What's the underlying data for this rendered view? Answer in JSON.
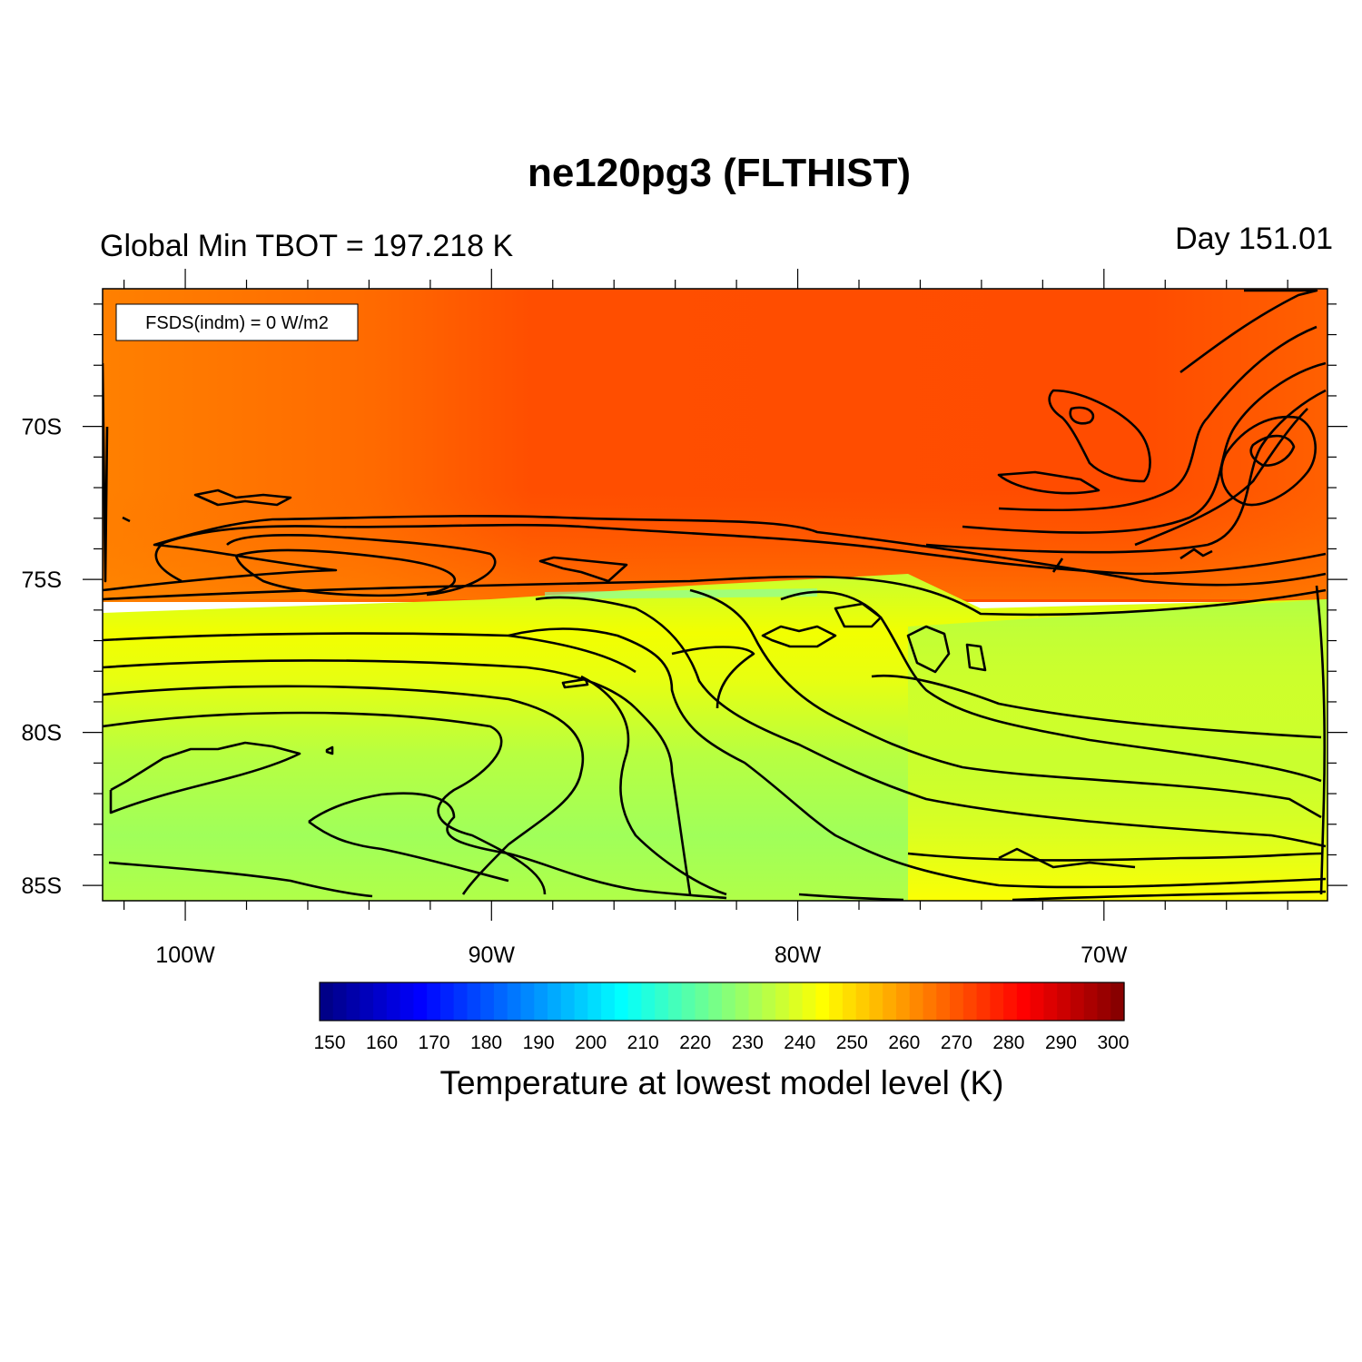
{
  "chart_data": {
    "type": "heatmap",
    "title": "ne120pg3 (FLTHIST)",
    "subtitle_left": "Global Min TBOT = 197.218 K",
    "subtitle_right": "Day 151.01",
    "annotation": "FSDS(indm) = 0 W/m2",
    "colorbar_title": "Temperature at lowest model level (K)",
    "x_axis": {
      "unit": "degrees longitude",
      "range": [
        -102.7,
        -62.7
      ],
      "ticks": [
        -100,
        -90,
        -80,
        -70
      ],
      "tick_labels": [
        "100W",
        "90W",
        "80W",
        "70W"
      ]
    },
    "y_axis": {
      "unit": "degrees latitude",
      "range": [
        -85.5,
        -65.5
      ],
      "ticks": [
        -70,
        -75,
        -80,
        -85
      ],
      "tick_labels": [
        "70S",
        "75S",
        "80S",
        "85S"
      ]
    },
    "color_scale": {
      "min": 150,
      "max": 300,
      "tick_values": [
        150,
        160,
        170,
        180,
        190,
        200,
        210,
        220,
        230,
        240,
        250,
        260,
        270,
        280,
        290,
        300
      ],
      "tick_labels": [
        "150",
        "160",
        "170",
        "180",
        "190",
        "200",
        "210",
        "220",
        "230",
        "240",
        "250",
        "260",
        "270",
        "280",
        "290",
        "300"
      ],
      "colors": [
        "#00007f",
        "#0000ff",
        "#007fff",
        "#00ffff",
        "#7fff7f",
        "#ffff00",
        "#ff7f00",
        "#ff0000",
        "#7f0000"
      ]
    },
    "field_regions": [
      {
        "region": "ocean north of ~75.5S, western part",
        "approx_value_K": 265
      },
      {
        "region": "ocean north of ~75.5S, central/eastern part",
        "approx_value_K": 270
      },
      {
        "region": "Antarctic interior south of ~75.5S",
        "approx_value_K": 240
      },
      {
        "region": "coastal belt near 77-79S",
        "approx_value_K": 247
      },
      {
        "region": "southern band near 84-85S, east",
        "approx_value_K": 250
      }
    ],
    "contour_lines": "black contour lines; no labels printed"
  }
}
